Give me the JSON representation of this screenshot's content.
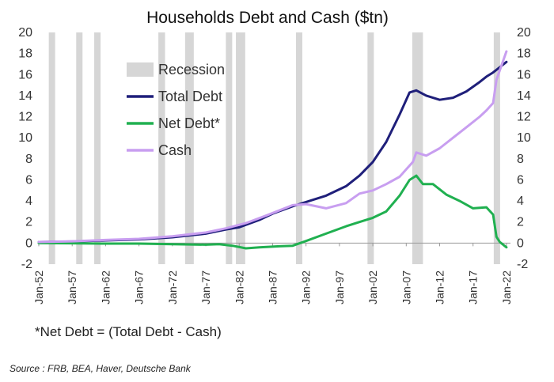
{
  "chart_data": {
    "type": "line",
    "title": "Households Debt and Cash ($tn)",
    "ylim": [
      -2,
      20
    ],
    "yticks": [
      -2,
      0,
      2,
      4,
      6,
      8,
      10,
      12,
      14,
      16,
      18,
      20
    ],
    "xlim": [
      1952,
      2022.6
    ],
    "xticks": [
      "Jan-52",
      "Jan-57",
      "Jan-62",
      "Jan-67",
      "Jan-72",
      "Jan-77",
      "Jan-82",
      "Jan-87",
      "Jan-92",
      "Jan-97",
      "Jan-02",
      "Jan-07",
      "Jan-12",
      "Jan-17",
      "Jan-22"
    ],
    "grid": false,
    "legend_position": "top-left",
    "recessions": [
      [
        1953.5,
        1954.3
      ],
      [
        1957.6,
        1958.3
      ],
      [
        1960.3,
        1961.1
      ],
      [
        1969.9,
        1970.9
      ],
      [
        1973.9,
        1975.2
      ],
      [
        1980.0,
        1980.6
      ],
      [
        1981.5,
        1982.9
      ],
      [
        1990.5,
        1991.2
      ],
      [
        2001.2,
        2001.9
      ],
      [
        2007.9,
        2009.5
      ],
      [
        2020.1,
        2020.5
      ]
    ],
    "series": [
      {
        "name": "Total Debt",
        "color": "#1f1f7a",
        "x": [
          1952,
          1957,
          1962,
          1967,
          1972,
          1977,
          1980,
          1982,
          1985,
          1987,
          1990,
          1992,
          1995,
          1998,
          2000,
          2002,
          2004,
          2006,
          2007.5,
          2008.5,
          2010,
          2012,
          2014,
          2016,
          2018,
          2019,
          2020,
          2021,
          2022
        ],
        "y": [
          0.1,
          0.15,
          0.25,
          0.35,
          0.55,
          0.9,
          1.3,
          1.5,
          2.2,
          2.8,
          3.5,
          3.9,
          4.5,
          5.4,
          6.4,
          7.7,
          9.6,
          12.2,
          14.3,
          14.5,
          14.0,
          13.6,
          13.8,
          14.4,
          15.3,
          15.8,
          16.2,
          16.7,
          17.2
        ]
      },
      {
        "name": "Net Debt*",
        "color": "#20b050",
        "x": [
          1952,
          1957,
          1962,
          1967,
          1972,
          1977,
          1979,
          1981,
          1983,
          1985,
          1988,
          1990,
          1992,
          1995,
          1998,
          2000,
          2002,
          2004,
          2006,
          2007.5,
          2008.5,
          2009.5,
          2011,
          2013,
          2015,
          2017,
          2019,
          2020,
          2020.5,
          2021,
          2022
        ],
        "y": [
          0,
          -0.02,
          -0.05,
          -0.05,
          -0.1,
          -0.15,
          -0.1,
          -0.25,
          -0.5,
          -0.4,
          -0.3,
          -0.25,
          0.2,
          0.9,
          1.6,
          2.0,
          2.4,
          3.0,
          4.5,
          6.0,
          6.4,
          5.6,
          5.6,
          4.6,
          4.0,
          3.3,
          3.4,
          2.7,
          0.6,
          0.1,
          -0.4
        ]
      },
      {
        "name": "Cash",
        "color": "#c89ef0",
        "x": [
          1952,
          1957,
          1962,
          1967,
          1972,
          1977,
          1980,
          1983,
          1986,
          1990,
          1992,
          1995,
          1998,
          2000,
          2002,
          2004,
          2006,
          2008,
          2008.5,
          2010,
          2012,
          2014,
          2016,
          2018,
          2019,
          2020,
          2020.5,
          2021,
          2022
        ],
        "y": [
          0.1,
          0.17,
          0.3,
          0.4,
          0.65,
          1.0,
          1.4,
          1.9,
          2.6,
          3.6,
          3.7,
          3.3,
          3.8,
          4.7,
          5.0,
          5.6,
          6.3,
          7.7,
          8.6,
          8.3,
          9.0,
          10.0,
          11.0,
          12.0,
          12.6,
          13.3,
          15.5,
          16.4,
          18.2
        ]
      }
    ],
    "recession_label": "Recession"
  },
  "footnote": "*Net Debt = (Total Debt - Cash)",
  "source": "Source : FRB, BEA, Haver, Deutsche Bank"
}
